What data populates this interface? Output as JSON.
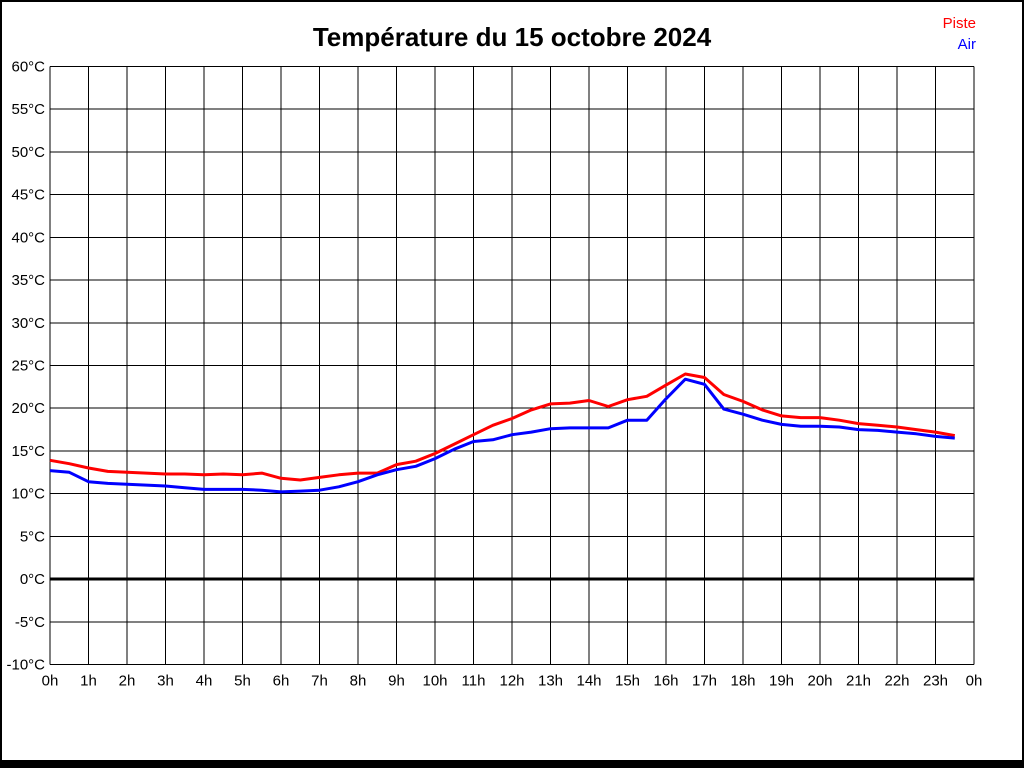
{
  "title": "Température du 15 octobre 2024",
  "legend": {
    "position": "top-right",
    "items": [
      {
        "label": "Piste",
        "color": "#ff0000"
      },
      {
        "label": "Air",
        "color": "#0000ff"
      }
    ]
  },
  "chart_data": {
    "type": "line",
    "title": "Température du 15 octobre 2024",
    "xlabel": "",
    "ylabel": "",
    "ylim": [
      -10,
      60
    ],
    "xlim_hours": [
      0,
      24
    ],
    "grid": true,
    "zero_line_bold": true,
    "line_width": 3,
    "x_hours": [
      0,
      0.5,
      1,
      1.5,
      2,
      2.5,
      3,
      3.5,
      4,
      4.5,
      5,
      5.5,
      6,
      6.5,
      7,
      7.5,
      8,
      8.5,
      9,
      9.5,
      10,
      10.5,
      11,
      11.5,
      12,
      12.5,
      13,
      13.5,
      14,
      14.5,
      15,
      15.5,
      16,
      16.5,
      17,
      17.5,
      18,
      18.5,
      19,
      19.5,
      20,
      20.5,
      21,
      21.5,
      22,
      22.5,
      23,
      23.5
    ],
    "series": [
      {
        "name": "Piste",
        "color": "#ff0000",
        "values": [
          13.9,
          13.5,
          13.0,
          12.6,
          12.5,
          12.4,
          12.3,
          12.3,
          12.2,
          12.3,
          12.2,
          12.4,
          11.8,
          11.6,
          11.9,
          12.2,
          12.4,
          12.4,
          13.4,
          13.8,
          14.7,
          15.8,
          16.9,
          18.0,
          18.8,
          19.8,
          20.5,
          20.6,
          20.9,
          20.2,
          21.0,
          21.4,
          22.7,
          24.0,
          23.6,
          21.6,
          20.8,
          19.8,
          19.1,
          18.9,
          18.9,
          18.6,
          18.2,
          18.0,
          17.8,
          17.5,
          17.2,
          16.8
        ]
      },
      {
        "name": "Air",
        "color": "#0000ff",
        "values": [
          12.7,
          12.5,
          11.4,
          11.2,
          11.1,
          11.0,
          10.9,
          10.7,
          10.5,
          10.5,
          10.5,
          10.4,
          10.2,
          10.3,
          10.4,
          10.8,
          11.4,
          12.2,
          12.8,
          13.2,
          14.1,
          15.2,
          16.1,
          16.3,
          16.9,
          17.2,
          17.6,
          17.7,
          17.7,
          17.7,
          18.6,
          18.6,
          21.1,
          23.4,
          22.8,
          19.9,
          19.3,
          18.6,
          18.1,
          17.9,
          17.9,
          17.8,
          17.5,
          17.4,
          17.2,
          17.0,
          16.7,
          16.5
        ]
      }
    ],
    "y_ticks": [
      {
        "value": 60,
        "label": "60°C"
      },
      {
        "value": 55,
        "label": "55°C"
      },
      {
        "value": 50,
        "label": "50°C"
      },
      {
        "value": 45,
        "label": "45°C"
      },
      {
        "value": 40,
        "label": "40°C"
      },
      {
        "value": 35,
        "label": "35°C"
      },
      {
        "value": 30,
        "label": "30°C"
      },
      {
        "value": 25,
        "label": "25°C"
      },
      {
        "value": 20,
        "label": "20°C"
      },
      {
        "value": 15,
        "label": "15°C"
      },
      {
        "value": 10,
        "label": "10°C"
      },
      {
        "value": 5,
        "label": "5°C"
      },
      {
        "value": 0,
        "label": "0°C"
      },
      {
        "value": -5,
        "label": "-5°C"
      },
      {
        "value": -10,
        "label": "-10°C"
      }
    ],
    "x_ticks": [
      {
        "value": 0,
        "label": "0h"
      },
      {
        "value": 1,
        "label": "1h"
      },
      {
        "value": 2,
        "label": "2h"
      },
      {
        "value": 3,
        "label": "3h"
      },
      {
        "value": 4,
        "label": "4h"
      },
      {
        "value": 5,
        "label": "5h"
      },
      {
        "value": 6,
        "label": "6h"
      },
      {
        "value": 7,
        "label": "7h"
      },
      {
        "value": 8,
        "label": "8h"
      },
      {
        "value": 9,
        "label": "9h"
      },
      {
        "value": 10,
        "label": "10h"
      },
      {
        "value": 11,
        "label": "11h"
      },
      {
        "value": 12,
        "label": "12h"
      },
      {
        "value": 13,
        "label": "13h"
      },
      {
        "value": 14,
        "label": "14h"
      },
      {
        "value": 15,
        "label": "15h"
      },
      {
        "value": 16,
        "label": "16h"
      },
      {
        "value": 17,
        "label": "17h"
      },
      {
        "value": 18,
        "label": "18h"
      },
      {
        "value": 19,
        "label": "19h"
      },
      {
        "value": 20,
        "label": "20h"
      },
      {
        "value": 21,
        "label": "21h"
      },
      {
        "value": 22,
        "label": "22h"
      },
      {
        "value": 23,
        "label": "23h"
      },
      {
        "value": 24,
        "label": "0h"
      }
    ]
  },
  "colors": {
    "background": "#ffffff",
    "grid": "#000000",
    "border": "#000000",
    "axis_text": "#000000"
  }
}
